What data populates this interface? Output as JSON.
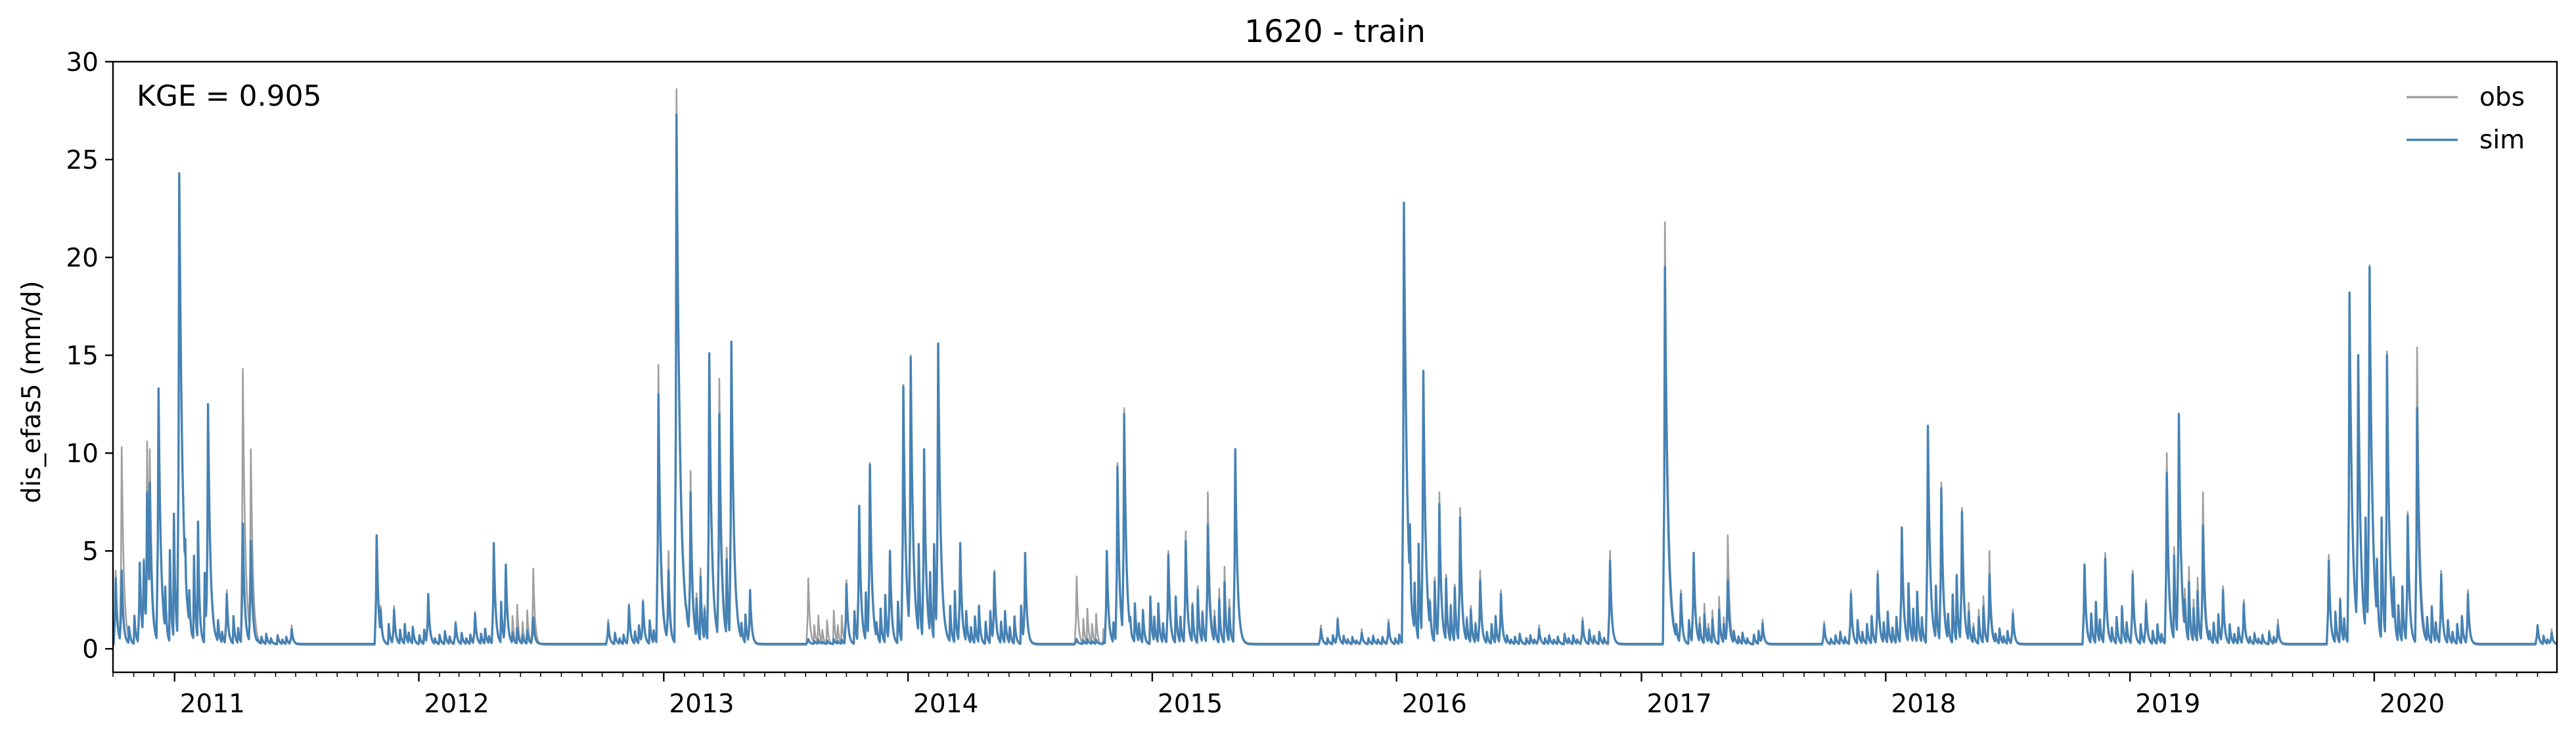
{
  "chart_data": {
    "type": "line",
    "title": "1620 - train",
    "xlabel": "",
    "ylabel": "dis_efas5 (mm/d)",
    "annotation": "KGE = 0.905",
    "xlim": [
      "2010-10-01",
      "2020-09-30"
    ],
    "ylim": [
      -1.2,
      30
    ],
    "yticks": [
      0,
      5,
      10,
      15,
      20,
      25,
      30
    ],
    "ytick_labels": [
      "0",
      "5",
      "10",
      "15",
      "20",
      "25",
      "30"
    ],
    "xticks": [
      "2011-01-01",
      "2012-01-01",
      "2013-01-01",
      "2014-01-01",
      "2015-01-01",
      "2016-01-01",
      "2017-01-01",
      "2018-01-01",
      "2019-01-01",
      "2020-01-01"
    ],
    "xtick_labels": [
      "2011",
      "2012",
      "2013",
      "2014",
      "2015",
      "2016",
      "2017",
      "2018",
      "2019",
      "2020"
    ],
    "grid": false,
    "legend": {
      "position": "top-right",
      "frame": false
    },
    "series": [
      {
        "name": "obs",
        "color": "#a0a0a0",
        "baseline": 0.2,
        "peaks": [
          [
            "2010-10-05",
            4.0
          ],
          [
            "2010-10-14",
            10.3
          ],
          [
            "2010-11-10",
            4.1
          ],
          [
            "2010-11-16",
            4.6
          ],
          [
            "2010-11-21",
            10.6
          ],
          [
            "2010-11-25",
            10.2
          ],
          [
            "2010-12-08",
            13.3
          ],
          [
            "2011-01-08",
            24.0
          ],
          [
            "2011-02-20",
            12.4
          ],
          [
            "2011-03-20",
            3.0
          ],
          [
            "2011-04-13",
            14.3
          ],
          [
            "2011-04-25",
            10.2
          ],
          [
            "2011-06-25",
            1.2
          ],
          [
            "2011-10-30",
            5.8
          ],
          [
            "2011-11-05",
            2.2
          ],
          [
            "2011-11-25",
            2.2
          ],
          [
            "2012-01-15",
            2.6
          ],
          [
            "2012-02-25",
            1.4
          ],
          [
            "2012-03-25",
            1.9
          ],
          [
            "2012-04-22",
            5.4
          ],
          [
            "2012-05-10",
            4.3
          ],
          [
            "2012-06-20",
            4.1
          ],
          [
            "2012-10-10",
            1.5
          ],
          [
            "2012-11-10",
            2.3
          ],
          [
            "2012-12-01",
            2.5
          ],
          [
            "2012-12-24",
            14.5
          ],
          [
            "2013-01-08",
            5.0
          ],
          [
            "2013-01-20",
            28.6
          ],
          [
            "2013-02-10",
            9.1
          ],
          [
            "2013-03-10",
            15.0
          ],
          [
            "2013-03-25",
            13.8
          ],
          [
            "2013-04-12",
            15.6
          ],
          [
            "2013-05-10",
            3.0
          ],
          [
            "2013-08-05",
            3.6
          ],
          [
            "2013-10-01",
            3.5
          ],
          [
            "2013-10-20",
            7.3
          ],
          [
            "2013-11-05",
            9.5
          ],
          [
            "2013-12-05",
            5.0
          ],
          [
            "2013-12-25",
            13.5
          ],
          [
            "2014-01-05",
            15.0
          ],
          [
            "2014-01-25",
            10.0
          ],
          [
            "2014-02-15",
            15.6
          ],
          [
            "2014-03-20",
            5.4
          ],
          [
            "2014-05-10",
            4.0
          ],
          [
            "2014-06-25",
            4.9
          ],
          [
            "2014-09-10",
            3.7
          ],
          [
            "2014-10-25",
            5.0
          ],
          [
            "2014-11-10",
            9.5
          ],
          [
            "2014-11-20",
            12.3
          ],
          [
            "2015-01-25",
            5.0
          ],
          [
            "2015-02-20",
            6.0
          ],
          [
            "2015-03-25",
            8.0
          ],
          [
            "2015-05-05",
            10.2
          ],
          [
            "2015-09-10",
            1.2
          ],
          [
            "2015-10-05",
            1.6
          ],
          [
            "2015-11-10",
            1.0
          ],
          [
            "2015-12-20",
            1.5
          ],
          [
            "2016-01-12",
            22.8
          ],
          [
            "2016-02-10",
            14.2
          ],
          [
            "2016-03-05",
            8.0
          ],
          [
            "2016-04-05",
            7.2
          ],
          [
            "2016-05-05",
            4.0
          ],
          [
            "2016-06-05",
            3.0
          ],
          [
            "2016-08-01",
            1.2
          ],
          [
            "2016-10-05",
            1.6
          ],
          [
            "2016-11-15",
            5.0
          ],
          [
            "2017-02-05",
            21.8
          ],
          [
            "2017-03-01",
            3.0
          ],
          [
            "2017-03-20",
            4.9
          ],
          [
            "2017-05-10",
            5.8
          ],
          [
            "2017-07-01",
            1.5
          ],
          [
            "2017-10-01",
            1.4
          ],
          [
            "2017-11-10",
            3.0
          ],
          [
            "2017-12-20",
            4.0
          ],
          [
            "2018-01-25",
            6.0
          ],
          [
            "2018-03-05",
            11.4
          ],
          [
            "2018-03-25",
            8.5
          ],
          [
            "2018-04-25",
            7.2
          ],
          [
            "2018-06-05",
            5.0
          ],
          [
            "2018-07-10",
            2.0
          ],
          [
            "2018-10-25",
            3.8
          ],
          [
            "2018-11-25",
            4.9
          ],
          [
            "2019-01-05",
            4.0
          ],
          [
            "2019-01-25",
            2.5
          ],
          [
            "2019-02-25",
            10.0
          ],
          [
            "2019-03-15",
            12.0
          ],
          [
            "2019-04-20",
            8.0
          ],
          [
            "2019-05-20",
            3.2
          ],
          [
            "2019-06-20",
            2.5
          ],
          [
            "2019-08-10",
            1.5
          ],
          [
            "2019-10-25",
            4.8
          ],
          [
            "2019-11-25",
            18.2
          ],
          [
            "2019-12-08",
            15.0
          ],
          [
            "2019-12-25",
            19.6
          ],
          [
            "2020-01-20",
            15.2
          ],
          [
            "2020-02-20",
            7.0
          ],
          [
            "2020-03-05",
            15.4
          ],
          [
            "2020-04-10",
            4.0
          ],
          [
            "2020-05-20",
            3.0
          ],
          [
            "2020-09-01",
            1.2
          ],
          [
            "2020-09-22",
            1.0
          ]
        ]
      },
      {
        "name": "sim",
        "color": "#4682b4",
        "baseline": 0.25,
        "peaks": [
          [
            "2010-10-05",
            3.6
          ],
          [
            "2010-10-14",
            4.0
          ],
          [
            "2010-11-10",
            4.4
          ],
          [
            "2010-11-16",
            4.5
          ],
          [
            "2010-11-21",
            8.0
          ],
          [
            "2010-11-25",
            8.5
          ],
          [
            "2010-12-08",
            13.3
          ],
          [
            "2011-01-08",
            24.3
          ],
          [
            "2011-02-20",
            12.5
          ],
          [
            "2011-03-20",
            2.8
          ],
          [
            "2011-04-13",
            6.4
          ],
          [
            "2011-04-25",
            5.5
          ],
          [
            "2011-06-25",
            1.0
          ],
          [
            "2011-10-30",
            5.8
          ],
          [
            "2011-11-05",
            2.0
          ],
          [
            "2011-11-25",
            2.0
          ],
          [
            "2012-01-15",
            2.8
          ],
          [
            "2012-02-25",
            1.3
          ],
          [
            "2012-03-25",
            1.8
          ],
          [
            "2012-04-22",
            5.4
          ],
          [
            "2012-05-10",
            4.3
          ],
          [
            "2012-06-20",
            1.6
          ],
          [
            "2012-10-10",
            1.3
          ],
          [
            "2012-11-10",
            2.2
          ],
          [
            "2012-12-01",
            2.4
          ],
          [
            "2012-12-24",
            13.0
          ],
          [
            "2013-01-08",
            4.0
          ],
          [
            "2013-01-20",
            27.3
          ],
          [
            "2013-02-10",
            8.0
          ],
          [
            "2013-03-10",
            15.1
          ],
          [
            "2013-03-25",
            12.0
          ],
          [
            "2013-04-12",
            15.7
          ],
          [
            "2013-05-10",
            3.0
          ],
          [
            "2013-08-05",
            0.5
          ],
          [
            "2013-10-01",
            3.3
          ],
          [
            "2013-10-20",
            7.3
          ],
          [
            "2013-11-05",
            9.4
          ],
          [
            "2013-12-05",
            5.0
          ],
          [
            "2013-12-25",
            13.4
          ],
          [
            "2014-01-05",
            14.9
          ],
          [
            "2014-01-25",
            10.2
          ],
          [
            "2014-02-15",
            15.6
          ],
          [
            "2014-03-20",
            5.4
          ],
          [
            "2014-05-10",
            3.9
          ],
          [
            "2014-06-25",
            4.9
          ],
          [
            "2014-09-10",
            0.5
          ],
          [
            "2014-10-25",
            5.0
          ],
          [
            "2014-11-10",
            9.3
          ],
          [
            "2014-11-20",
            12.0
          ],
          [
            "2015-01-25",
            4.8
          ],
          [
            "2015-02-20",
            5.5
          ],
          [
            "2015-03-25",
            6.3
          ],
          [
            "2015-05-05",
            10.2
          ],
          [
            "2015-09-10",
            1.0
          ],
          [
            "2015-10-05",
            1.5
          ],
          [
            "2015-11-10",
            0.8
          ],
          [
            "2015-12-20",
            1.3
          ],
          [
            "2016-01-12",
            22.8
          ],
          [
            "2016-02-10",
            14.2
          ],
          [
            "2016-03-05",
            7.4
          ],
          [
            "2016-04-05",
            6.7
          ],
          [
            "2016-05-05",
            3.5
          ],
          [
            "2016-06-05",
            2.8
          ],
          [
            "2016-08-01",
            1.0
          ],
          [
            "2016-10-05",
            1.4
          ],
          [
            "2016-11-15",
            4.5
          ],
          [
            "2017-02-05",
            19.5
          ],
          [
            "2017-03-01",
            2.8
          ],
          [
            "2017-03-20",
            4.9
          ],
          [
            "2017-05-10",
            3.5
          ],
          [
            "2017-07-01",
            1.3
          ],
          [
            "2017-10-01",
            1.2
          ],
          [
            "2017-11-10",
            2.8
          ],
          [
            "2017-12-20",
            3.8
          ],
          [
            "2018-01-25",
            6.2
          ],
          [
            "2018-03-05",
            11.4
          ],
          [
            "2018-03-25",
            8.2
          ],
          [
            "2018-04-25",
            7.0
          ],
          [
            "2018-06-05",
            3.8
          ],
          [
            "2018-07-10",
            1.8
          ],
          [
            "2018-10-25",
            4.3
          ],
          [
            "2018-11-25",
            4.6
          ],
          [
            "2019-01-05",
            3.8
          ],
          [
            "2019-01-25",
            2.3
          ],
          [
            "2019-02-25",
            9.0
          ],
          [
            "2019-03-15",
            12.0
          ],
          [
            "2019-04-20",
            6.3
          ],
          [
            "2019-05-20",
            3.0
          ],
          [
            "2019-06-20",
            2.3
          ],
          [
            "2019-08-10",
            1.2
          ],
          [
            "2019-10-25",
            4.5
          ],
          [
            "2019-11-25",
            18.2
          ],
          [
            "2019-12-08",
            15.0
          ],
          [
            "2019-12-25",
            19.5
          ],
          [
            "2020-01-20",
            15.0
          ],
          [
            "2020-02-20",
            6.8
          ],
          [
            "2020-03-05",
            12.3
          ],
          [
            "2020-04-10",
            3.8
          ],
          [
            "2020-05-20",
            2.8
          ],
          [
            "2020-09-01",
            1.2
          ],
          [
            "2020-09-22",
            0.8
          ]
        ]
      }
    ]
  }
}
